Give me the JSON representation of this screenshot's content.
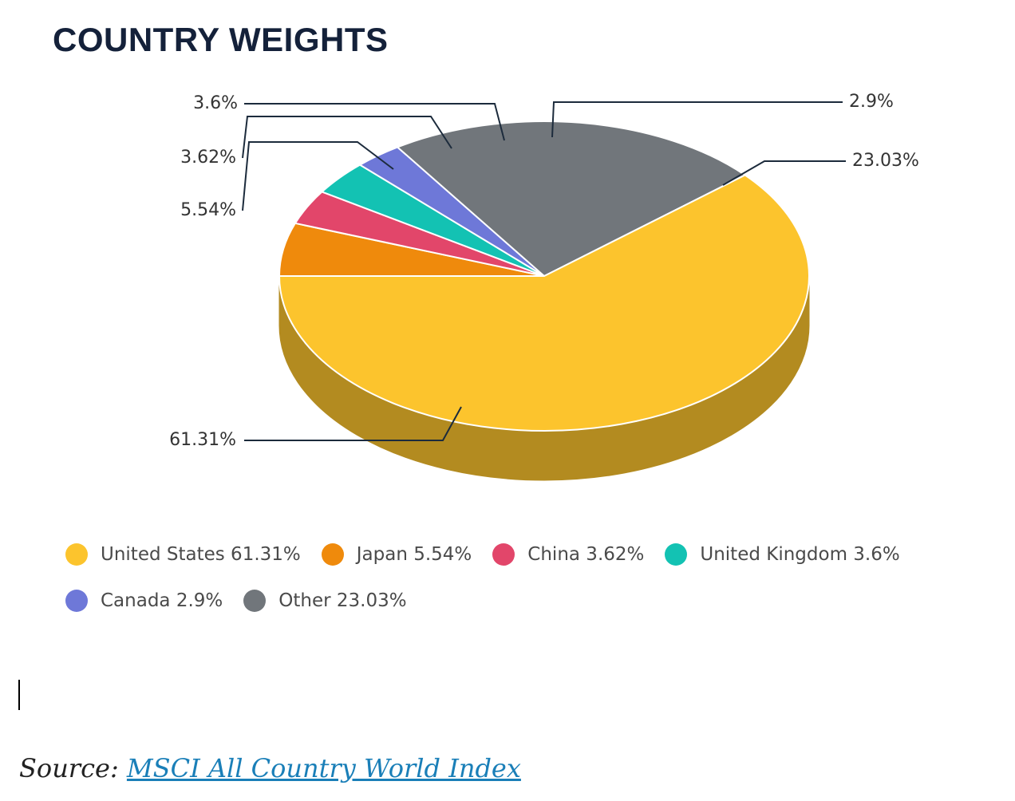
{
  "title": "COUNTRY WEIGHTS",
  "chart_data": {
    "type": "pie",
    "style": "3d",
    "title": "COUNTRY WEIGHTS",
    "slices": [
      {
        "label": "United States",
        "value": 61.31,
        "display": "61.31%",
        "legend": "United States 61.31%",
        "color": "#fcc42d",
        "side_color": "#b38b20"
      },
      {
        "label": "Japan",
        "value": 5.54,
        "display": "5.54%",
        "legend": "Japan 5.54%",
        "color": "#ef8a0c",
        "side_color": "#a85f08"
      },
      {
        "label": "China",
        "value": 3.62,
        "display": "3.62%",
        "legend": "China 3.62%",
        "color": "#e2466a",
        "side_color": "#9e304a"
      },
      {
        "label": "United Kingdom",
        "value": 3.6,
        "display": "3.6%",
        "legend": "United Kingdom 3.6%",
        "color": "#13c2b3",
        "side_color": "#0d877d"
      },
      {
        "label": "Canada",
        "value": 2.9,
        "display": "2.9%",
        "legend": "Canada 2.9%",
        "color": "#6e78d8",
        "side_color": "#4c5497"
      },
      {
        "label": "Other",
        "value": 23.03,
        "display": "23.03%",
        "legend": "Other 23.03%",
        "color": "#71767b",
        "side_color": "#4f5256"
      }
    ],
    "legend_position": "bottom"
  },
  "source": {
    "prefix": "Source:",
    "link_text": "MSCI All Country World Index"
  }
}
